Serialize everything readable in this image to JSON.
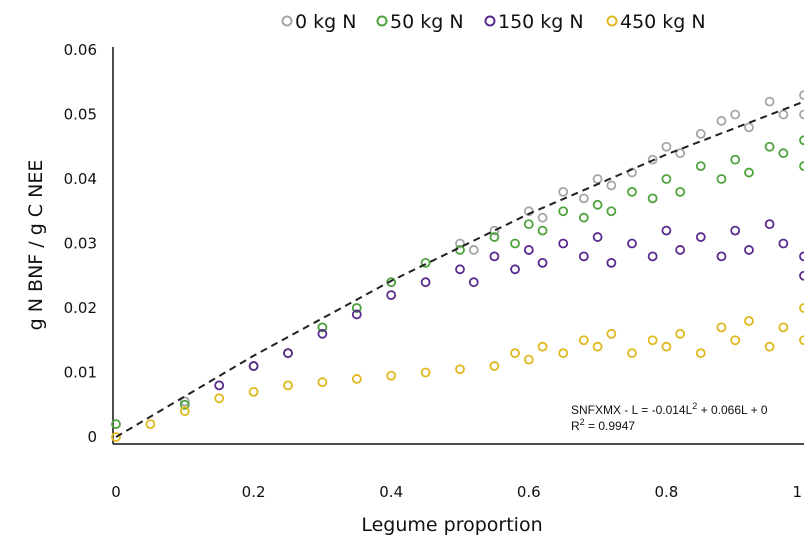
{
  "chart_data": {
    "type": "scatter",
    "xlabel": "Legume proportion",
    "ylabel": "g N BNF / g C NEE",
    "xlim": [
      0,
      1
    ],
    "ylim": [
      0,
      0.06
    ],
    "xticks": [
      "0",
      "0.2",
      "0.4",
      "0.6",
      "0.8",
      "1"
    ],
    "yticks": [
      "0",
      "0.01",
      "0.02",
      "0.03",
      "0.04",
      "0.05",
      "0.06"
    ],
    "grid": false,
    "legend_position": "top",
    "marker": "open-circle",
    "series": [
      {
        "name": "0 kg N",
        "color": "#a6a6a6",
        "points": [
          [
            0.1,
            0.0055
          ],
          [
            0.2,
            0.011
          ],
          [
            0.3,
            0.017
          ],
          [
            0.35,
            0.02
          ],
          [
            0.4,
            0.024
          ],
          [
            0.5,
            0.03
          ],
          [
            0.52,
            0.029
          ],
          [
            0.55,
            0.032
          ],
          [
            0.6,
            0.035
          ],
          [
            0.62,
            0.034
          ],
          [
            0.65,
            0.038
          ],
          [
            0.68,
            0.037
          ],
          [
            0.7,
            0.04
          ],
          [
            0.72,
            0.039
          ],
          [
            0.75,
            0.041
          ],
          [
            0.78,
            0.043
          ],
          [
            0.8,
            0.045
          ],
          [
            0.82,
            0.044
          ],
          [
            0.85,
            0.047
          ],
          [
            0.88,
            0.049
          ],
          [
            0.9,
            0.05
          ],
          [
            0.92,
            0.048
          ],
          [
            0.95,
            0.052
          ],
          [
            0.97,
            0.05
          ],
          [
            1.0,
            0.053
          ],
          [
            1.0,
            0.05
          ]
        ]
      },
      {
        "name": "50 kg N",
        "color": "#4fa33f",
        "points": [
          [
            0.0,
            0.002
          ],
          [
            0.1,
            0.005
          ],
          [
            0.2,
            0.011
          ],
          [
            0.25,
            0.013
          ],
          [
            0.3,
            0.017
          ],
          [
            0.35,
            0.02
          ],
          [
            0.4,
            0.024
          ],
          [
            0.45,
            0.027
          ],
          [
            0.5,
            0.029
          ],
          [
            0.55,
            0.031
          ],
          [
            0.58,
            0.03
          ],
          [
            0.6,
            0.033
          ],
          [
            0.62,
            0.032
          ],
          [
            0.65,
            0.035
          ],
          [
            0.68,
            0.034
          ],
          [
            0.7,
            0.036
          ],
          [
            0.72,
            0.035
          ],
          [
            0.75,
            0.038
          ],
          [
            0.78,
            0.037
          ],
          [
            0.8,
            0.04
          ],
          [
            0.82,
            0.038
          ],
          [
            0.85,
            0.042
          ],
          [
            0.88,
            0.04
          ],
          [
            0.9,
            0.043
          ],
          [
            0.92,
            0.041
          ],
          [
            0.95,
            0.045
          ],
          [
            0.97,
            0.044
          ],
          [
            1.0,
            0.042
          ],
          [
            1.0,
            0.046
          ]
        ]
      },
      {
        "name": "150 kg N",
        "color": "#5a2b8f",
        "points": [
          [
            0.15,
            0.008
          ],
          [
            0.2,
            0.011
          ],
          [
            0.25,
            0.013
          ],
          [
            0.3,
            0.016
          ],
          [
            0.35,
            0.019
          ],
          [
            0.4,
            0.022
          ],
          [
            0.45,
            0.024
          ],
          [
            0.5,
            0.026
          ],
          [
            0.52,
            0.024
          ],
          [
            0.55,
            0.028
          ],
          [
            0.58,
            0.026
          ],
          [
            0.6,
            0.029
          ],
          [
            0.62,
            0.027
          ],
          [
            0.65,
            0.03
          ],
          [
            0.68,
            0.028
          ],
          [
            0.7,
            0.031
          ],
          [
            0.72,
            0.027
          ],
          [
            0.75,
            0.03
          ],
          [
            0.78,
            0.028
          ],
          [
            0.8,
            0.032
          ],
          [
            0.82,
            0.029
          ],
          [
            0.85,
            0.031
          ],
          [
            0.88,
            0.028
          ],
          [
            0.9,
            0.032
          ],
          [
            0.92,
            0.029
          ],
          [
            0.95,
            0.033
          ],
          [
            0.97,
            0.03
          ],
          [
            1.0,
            0.028
          ],
          [
            1.0,
            0.025
          ]
        ]
      },
      {
        "name": "450 kg N",
        "color": "#e0b81f",
        "points": [
          [
            0.0,
            0.0
          ],
          [
            0.05,
            0.002
          ],
          [
            0.1,
            0.004
          ],
          [
            0.15,
            0.006
          ],
          [
            0.2,
            0.007
          ],
          [
            0.25,
            0.008
          ],
          [
            0.3,
            0.0085
          ],
          [
            0.35,
            0.009
          ],
          [
            0.4,
            0.0095
          ],
          [
            0.45,
            0.01
          ],
          [
            0.5,
            0.0105
          ],
          [
            0.55,
            0.011
          ],
          [
            0.58,
            0.013
          ],
          [
            0.6,
            0.012
          ],
          [
            0.62,
            0.014
          ],
          [
            0.65,
            0.013
          ],
          [
            0.68,
            0.015
          ],
          [
            0.7,
            0.014
          ],
          [
            0.72,
            0.016
          ],
          [
            0.75,
            0.013
          ],
          [
            0.78,
            0.015
          ],
          [
            0.8,
            0.014
          ],
          [
            0.82,
            0.016
          ],
          [
            0.85,
            0.013
          ],
          [
            0.88,
            0.017
          ],
          [
            0.9,
            0.015
          ],
          [
            0.92,
            0.018
          ],
          [
            0.95,
            0.014
          ],
          [
            0.97,
            0.017
          ],
          [
            1.0,
            0.015
          ],
          [
            1.0,
            0.02
          ]
        ]
      }
    ],
    "fit_line": {
      "style": "dashed",
      "points": [
        [
          0.0,
          0.0
        ],
        [
          0.2,
          0.0126
        ],
        [
          0.4,
          0.0242
        ],
        [
          0.6,
          0.0346
        ],
        [
          0.8,
          0.0438
        ],
        [
          1.0,
          0.052
        ]
      ]
    },
    "annotation": {
      "equation_prefix": "SNFXMX - L = -0.014L",
      "equation_sup": "2",
      "equation_suffix": " + 0.066L + 0",
      "r2_prefix": "R",
      "r2_sup": "2",
      "r2_suffix": " = 0.9947"
    }
  }
}
